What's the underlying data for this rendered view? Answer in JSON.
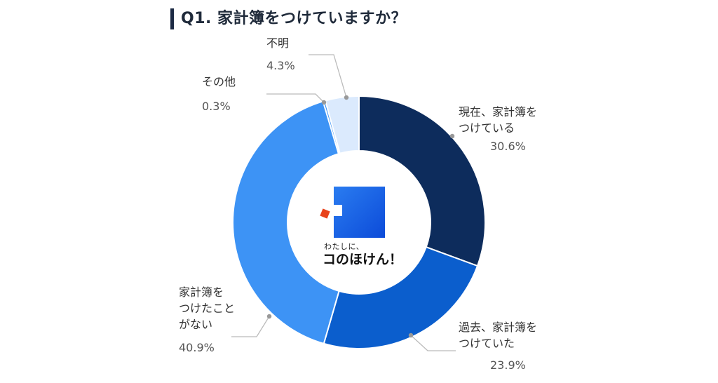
{
  "header": {
    "title": "Q1. 家計簿をつけていますか？"
  },
  "logo": {
    "tagline": "わたしに、",
    "name": "コのほけん！"
  },
  "colors": {
    "current": "#0d2c5c",
    "past": "#0b5ecd",
    "never": "#3d93f5",
    "other": "#3d93f5",
    "unknown": "#dbeafd",
    "callout_line": "#bbbbbb",
    "callout_dot": "#999999"
  },
  "chart_data": {
    "type": "pie",
    "donut": true,
    "title": "Q1. 家計簿をつけていますか？",
    "slices": [
      {
        "label": "現在、家計簿を\nつけている",
        "value": 30.6,
        "display": "30.6%"
      },
      {
        "label": "過去、家計簿を\nつけていた",
        "value": 23.9,
        "display": "23.9%"
      },
      {
        "label": "家計簿を\nつけたこと\nがない",
        "value": 40.9,
        "display": "40.9%"
      },
      {
        "label": "その他",
        "value": 0.3,
        "display": "0.3%"
      },
      {
        "label": "不明",
        "value": 4.3,
        "display": "4.3%"
      }
    ]
  }
}
